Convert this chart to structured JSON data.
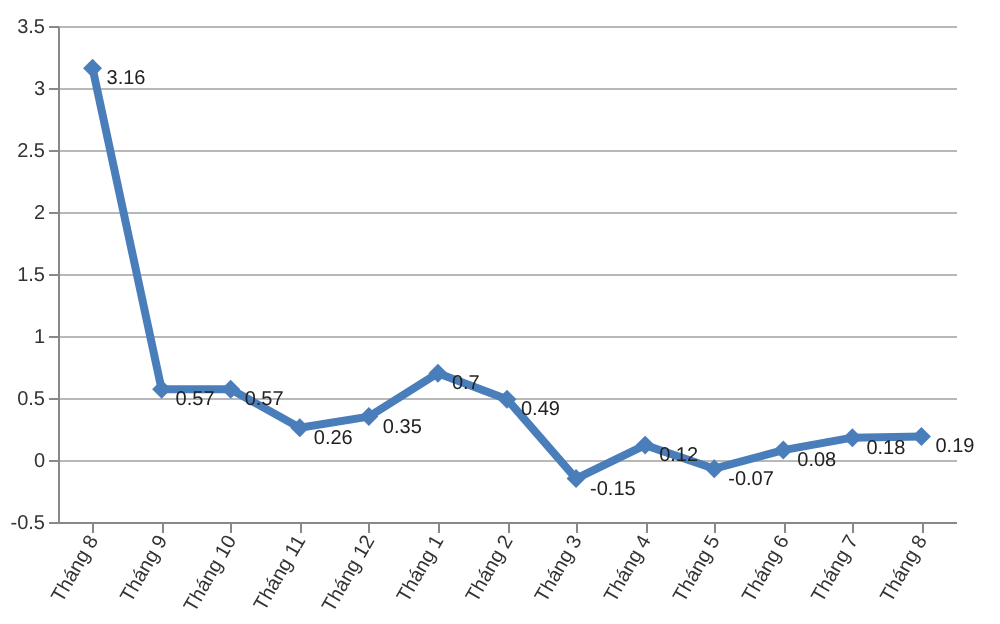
{
  "chart_data": {
    "type": "line",
    "categories": [
      "Tháng 8",
      "Tháng 9",
      "Tháng 10",
      "Tháng 11",
      "Tháng 12",
      "Tháng 1",
      "Tháng 2",
      "Tháng 3",
      "Tháng 4",
      "Tháng 5",
      "Tháng 6",
      "Tháng 7",
      "Tháng 8"
    ],
    "series": [
      {
        "color": "#4a7ebb",
        "values": [
          3.16,
          0.57,
          0.57,
          0.26,
          0.35,
          0.7,
          0.49,
          -0.15,
          0.12,
          -0.07,
          0.08,
          0.18,
          0.19
        ]
      }
    ],
    "ylim": [
      -0.5,
      3.5
    ],
    "yticks": [
      -0.5,
      0,
      0.5,
      1,
      1.5,
      2,
      2.5,
      3,
      3.5
    ],
    "grid": "y",
    "marker": "diamond",
    "line_style": "solid",
    "data_labels": true
  }
}
